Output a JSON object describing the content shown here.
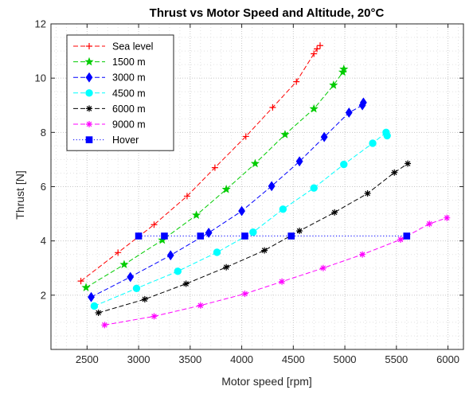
{
  "chart_data": {
    "type": "line",
    "title": "Thrust vs Motor Speed and Altitude, 20°C",
    "xlabel": "Motor speed [rpm]",
    "ylabel": "Thrust [N]",
    "xlim": [
      2150,
      6150
    ],
    "ylim": [
      0,
      12
    ],
    "x_ticks": [
      2500,
      3000,
      3500,
      4000,
      4500,
      5000,
      5500,
      6000
    ],
    "y_ticks": [
      2,
      4,
      6,
      8,
      10,
      12
    ],
    "grid": "major and minor dotted",
    "legend_position": "top-left",
    "series": [
      {
        "name": "Sea level",
        "color": "#ff0000",
        "marker": "plus",
        "line_style": "dashed",
        "x": [
          2440,
          2800,
          3150,
          3470,
          3740,
          4040,
          4300,
          4530,
          4700,
          4730,
          4760
        ],
        "y": [
          2.52,
          3.57,
          4.6,
          5.65,
          6.7,
          7.85,
          8.92,
          9.87,
          10.9,
          11.08,
          11.2
        ]
      },
      {
        "name": "1500 m",
        "color": "#00cc00",
        "marker": "star",
        "line_style": "dashed",
        "x": [
          2490,
          2860,
          3230,
          3560,
          3850,
          4130,
          4420,
          4700,
          4890,
          4980,
          4990
        ],
        "y": [
          2.28,
          3.13,
          4.03,
          4.95,
          5.9,
          6.85,
          7.92,
          8.87,
          9.74,
          10.22,
          10.33
        ]
      },
      {
        "name": "3000 m",
        "color": "#0000ff",
        "marker": "diamond",
        "line_style": "dashed",
        "x": [
          2540,
          2920,
          3310,
          3680,
          4000,
          4290,
          4560,
          4800,
          5040,
          5170,
          5180
        ],
        "y": [
          1.93,
          2.67,
          3.47,
          4.3,
          5.1,
          6.02,
          6.93,
          7.83,
          8.73,
          9.0,
          9.1
        ]
      },
      {
        "name": "4500 m",
        "color": "#00ffff",
        "marker": "circle",
        "line_style": "dashed",
        "x": [
          2570,
          2980,
          3380,
          3760,
          4110,
          4400,
          4700,
          4990,
          5270,
          5400,
          5410
        ],
        "y": [
          1.6,
          2.25,
          2.88,
          3.58,
          4.32,
          5.17,
          5.95,
          6.82,
          7.6,
          8.0,
          7.88
        ]
      },
      {
        "name": "6000 m",
        "color": "#000000",
        "marker": "asterisk",
        "line_style": "dashed",
        "x": [
          2610,
          3060,
          3460,
          3850,
          4220,
          4560,
          4900,
          5220,
          5480,
          5610
        ],
        "y": [
          1.35,
          1.85,
          2.42,
          3.03,
          3.65,
          4.37,
          5.05,
          5.75,
          6.52,
          6.85
        ]
      },
      {
        "name": "9000 m",
        "color": "#ff00ff",
        "marker": "asterisk",
        "line_style": "dashed",
        "x": [
          2670,
          3150,
          3600,
          4030,
          4390,
          4790,
          5170,
          5540,
          5820,
          5990
        ],
        "y": [
          0.9,
          1.22,
          1.62,
          2.05,
          2.5,
          3.0,
          3.5,
          4.05,
          4.63,
          4.85
        ]
      },
      {
        "name": "Hover",
        "color": "#0000ff",
        "marker": "square",
        "line_style": "dotted",
        "x": [
          3000,
          3250,
          3600,
          4030,
          4480,
          5600
        ],
        "y": [
          4.18,
          4.18,
          4.18,
          4.18,
          4.18,
          4.18
        ]
      }
    ]
  }
}
